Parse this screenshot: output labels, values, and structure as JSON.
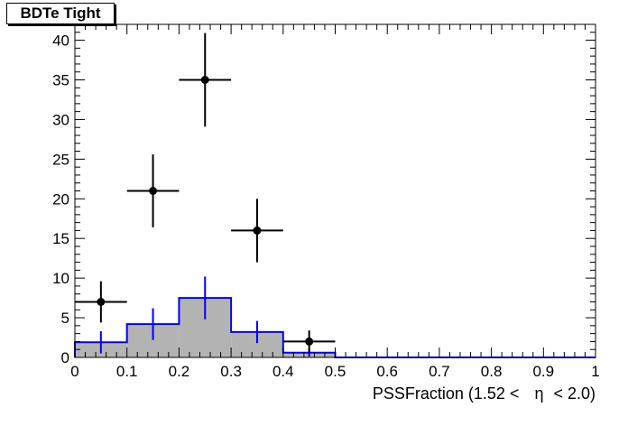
{
  "title": "BDTe Tight",
  "chart_data": {
    "type": "histogram",
    "xlabel_prefix": "PSSFraction (1.52 <",
    "xlabel_symbol": "η",
    "xlabel_suffix": "< 2.0)",
    "xlim": [
      0,
      1
    ],
    "ylim": [
      0,
      42
    ],
    "x_ticks": [
      "0",
      "0.1",
      "0.2",
      "0.3",
      "0.4",
      "0.5",
      "0.6",
      "0.7",
      "0.8",
      "0.9",
      "1"
    ],
    "y_ticks": [
      "0",
      "5",
      "10",
      "15",
      "20",
      "25",
      "30",
      "35",
      "40"
    ],
    "bin_edges": [
      0,
      0.1,
      0.2,
      0.3,
      0.4,
      0.5,
      0.6,
      0.7,
      0.8,
      0.9,
      1.0
    ],
    "grid": false,
    "series": [
      {
        "style": "filled-histogram",
        "fill_color": "#b3b3b3",
        "line_color": "#0000ff",
        "values": [
          1.9,
          4.2,
          7.5,
          3.2,
          0.6,
          0,
          0,
          0,
          0,
          0
        ],
        "errors": [
          1.4,
          2.0,
          2.7,
          1.4,
          0.5,
          0,
          0,
          0,
          0,
          0
        ]
      },
      {
        "style": "points-with-errors",
        "marker_color": "#000000",
        "points": [
          {
            "x": 0.05,
            "y": 7,
            "err": 2.6
          },
          {
            "x": 0.15,
            "y": 21,
            "err": 4.6
          },
          {
            "x": 0.25,
            "y": 35,
            "err": 5.9
          },
          {
            "x": 0.35,
            "y": 16,
            "err": 4.0
          },
          {
            "x": 0.45,
            "y": 2,
            "err": 1.4
          }
        ]
      }
    ]
  }
}
